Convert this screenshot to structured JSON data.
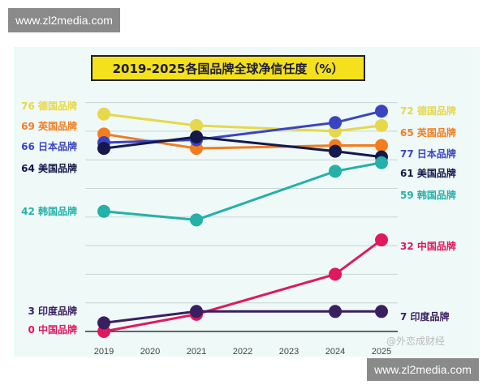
{
  "watermark": "www.zl2media.com",
  "weibo_watermark": "@外恋成财经",
  "chart_data": {
    "type": "line",
    "title": "2019-2025各国品牌全球净信任度（%）",
    "x": [
      2019,
      2021,
      2024,
      2025
    ],
    "x_ticks": [
      "2019",
      "2020",
      "2021",
      "2022",
      "2023",
      "2024",
      "2025"
    ],
    "ylim": [
      0,
      80
    ],
    "grid": true,
    "series": [
      {
        "name": "德国品牌",
        "color": "#e6d84a",
        "values": [
          76,
          72,
          70,
          72
        ],
        "start_label": "76 德国品牌",
        "end_label": "72 德国品牌"
      },
      {
        "name": "英国品牌",
        "color": "#f27c1e",
        "values": [
          69,
          64,
          65,
          65
        ],
        "start_label": "69 英国品牌",
        "end_label": "65 英国品牌"
      },
      {
        "name": "日本品牌",
        "color": "#3a44c0",
        "values": [
          66,
          67,
          73,
          77
        ],
        "start_label": "66 日本品牌",
        "end_label": "77 日本品牌"
      },
      {
        "name": "美国品牌",
        "color": "#14184a",
        "values": [
          64,
          68,
          63,
          61
        ],
        "start_label": "64 美国品牌",
        "end_label": "61 美国品牌"
      },
      {
        "name": "韩国品牌",
        "color": "#25b0a8",
        "values": [
          42,
          39,
          56,
          59
        ],
        "start_label": "42 韩国品牌",
        "end_label": "59 韩国品牌"
      },
      {
        "name": "中国品牌",
        "color": "#e0185e",
        "values": [
          0,
          6,
          20,
          32
        ],
        "start_label": "0 中国品牌",
        "end_label": "32 中国品牌"
      },
      {
        "name": "印度品牌",
        "color": "#3a1f60",
        "values": [
          3,
          7,
          7,
          7
        ],
        "start_label": "3 印度品牌",
        "end_label": "7 印度品牌"
      }
    ]
  }
}
